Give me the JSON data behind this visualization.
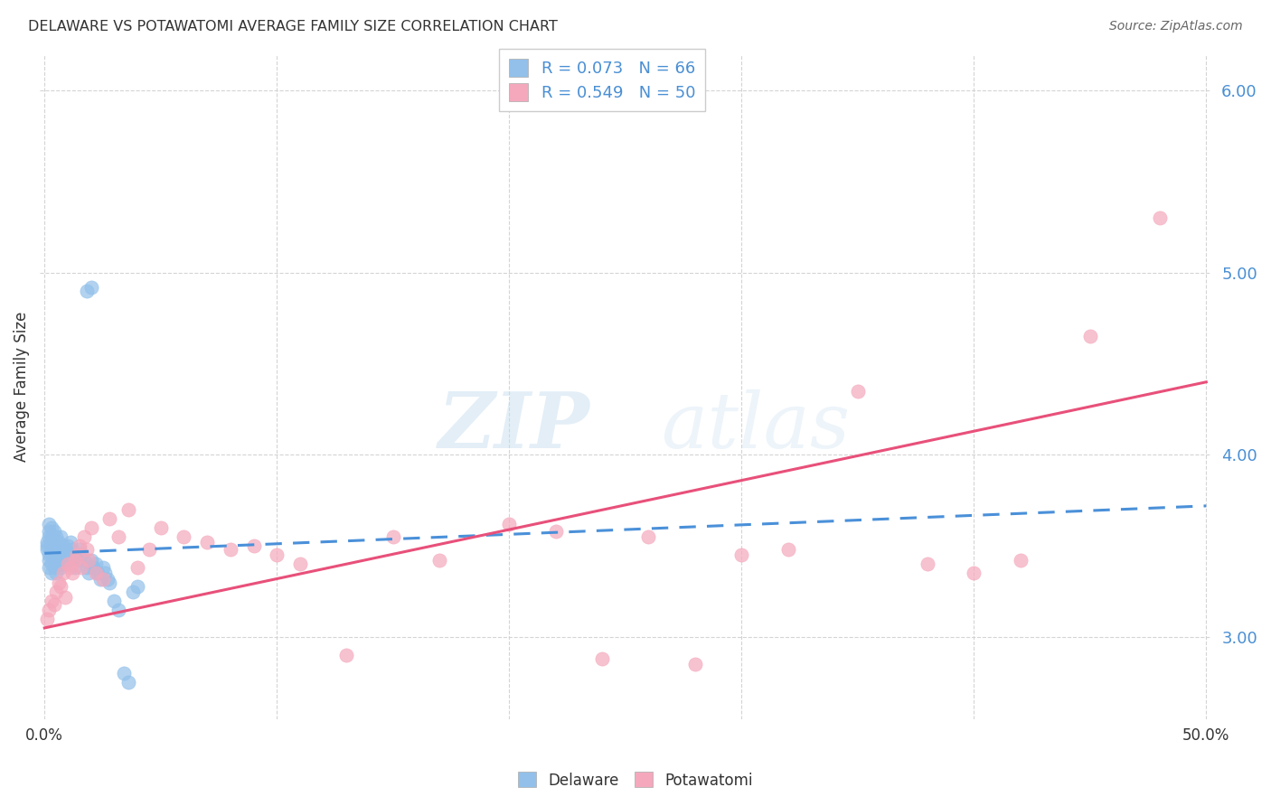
{
  "title": "DELAWARE VS POTAWATOMI AVERAGE FAMILY SIZE CORRELATION CHART",
  "source": "Source: ZipAtlas.com",
  "ylabel": "Average Family Size",
  "watermark_zip": "ZIP",
  "watermark_atlas": "atlas",
  "xlim": [
    0.0,
    0.5
  ],
  "ylim": [
    2.55,
    6.2
  ],
  "yticks": [
    3.0,
    4.0,
    5.0,
    6.0
  ],
  "xticks": [
    0.0,
    0.1,
    0.2,
    0.3,
    0.4,
    0.5
  ],
  "delaware_color": "#92c0ea",
  "potawatomi_color": "#f5a8bc",
  "delaware_line_color": "#4a90d9",
  "potawatomi_line_color": "#e8507a",
  "delaware_R": 0.073,
  "delaware_N": 66,
  "potawatomi_R": 0.549,
  "potawatomi_N": 50,
  "delaware_x": [
    0.001,
    0.001,
    0.001,
    0.002,
    0.002,
    0.002,
    0.002,
    0.002,
    0.002,
    0.003,
    0.003,
    0.003,
    0.003,
    0.003,
    0.003,
    0.004,
    0.004,
    0.004,
    0.004,
    0.004,
    0.005,
    0.005,
    0.005,
    0.005,
    0.006,
    0.006,
    0.006,
    0.007,
    0.007,
    0.007,
    0.008,
    0.008,
    0.008,
    0.009,
    0.009,
    0.01,
    0.01,
    0.011,
    0.011,
    0.012,
    0.012,
    0.013,
    0.013,
    0.014,
    0.015,
    0.016,
    0.017,
    0.018,
    0.019,
    0.02,
    0.021,
    0.022,
    0.023,
    0.024,
    0.025,
    0.026,
    0.027,
    0.028,
    0.03,
    0.032,
    0.034,
    0.036,
    0.038,
    0.04,
    0.018,
    0.02
  ],
  "delaware_y": [
    3.5,
    3.52,
    3.48,
    3.55,
    3.45,
    3.58,
    3.62,
    3.42,
    3.38,
    3.6,
    3.5,
    3.55,
    3.45,
    3.4,
    3.35,
    3.52,
    3.48,
    3.58,
    3.42,
    3.38,
    3.55,
    3.45,
    3.4,
    3.35,
    3.52,
    3.48,
    3.42,
    3.55,
    3.45,
    3.38,
    3.5,
    3.45,
    3.4,
    3.48,
    3.42,
    3.5,
    3.45,
    3.52,
    3.4,
    3.48,
    3.42,
    3.45,
    3.38,
    3.42,
    3.48,
    3.45,
    3.42,
    3.38,
    3.35,
    3.42,
    3.38,
    3.4,
    3.35,
    3.32,
    3.38,
    3.35,
    3.32,
    3.3,
    3.2,
    3.15,
    2.8,
    2.75,
    3.25,
    3.28,
    4.9,
    4.92
  ],
  "potawatomi_x": [
    0.001,
    0.002,
    0.003,
    0.004,
    0.005,
    0.006,
    0.007,
    0.008,
    0.009,
    0.01,
    0.011,
    0.012,
    0.013,
    0.014,
    0.015,
    0.016,
    0.017,
    0.018,
    0.019,
    0.02,
    0.022,
    0.025,
    0.028,
    0.032,
    0.036,
    0.04,
    0.045,
    0.05,
    0.06,
    0.07,
    0.08,
    0.09,
    0.1,
    0.11,
    0.13,
    0.15,
    0.17,
    0.2,
    0.22,
    0.24,
    0.26,
    0.28,
    0.3,
    0.32,
    0.35,
    0.38,
    0.4,
    0.42,
    0.45,
    0.48
  ],
  "potawatomi_y": [
    3.1,
    3.15,
    3.2,
    3.18,
    3.25,
    3.3,
    3.28,
    3.35,
    3.22,
    3.4,
    3.38,
    3.35,
    3.42,
    3.45,
    3.5,
    3.38,
    3.55,
    3.48,
    3.42,
    3.6,
    3.35,
    3.32,
    3.65,
    3.55,
    3.7,
    3.38,
    3.48,
    3.6,
    3.55,
    3.52,
    3.48,
    3.5,
    3.45,
    3.4,
    2.9,
    3.55,
    3.42,
    3.62,
    3.58,
    2.88,
    3.55,
    2.85,
    3.45,
    3.48,
    4.35,
    3.4,
    3.35,
    3.42,
    4.65,
    5.3
  ]
}
